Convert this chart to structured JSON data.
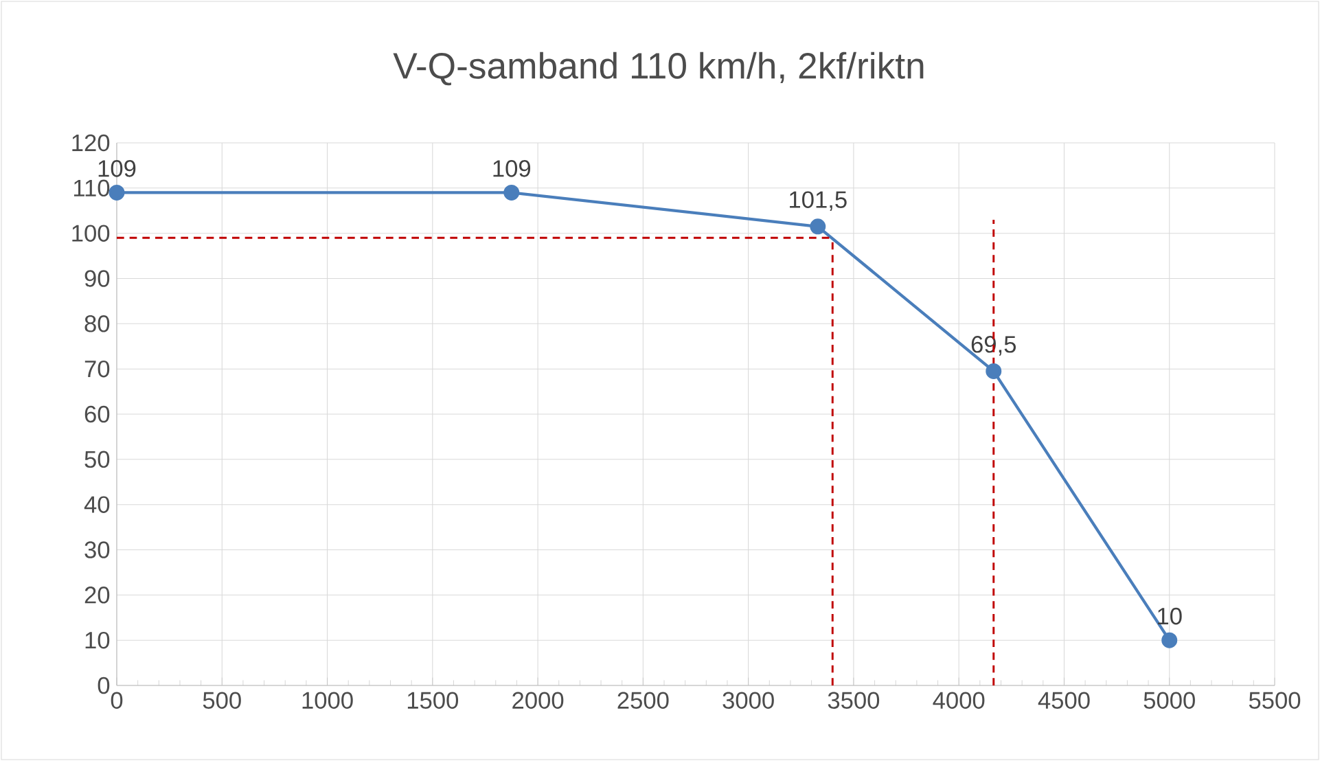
{
  "chart_data": {
    "type": "line",
    "title": "V-Q-samband 110 km/h, 2kf/riktn",
    "series": [
      {
        "color": "#4a7ebb",
        "x": [
          0,
          1875,
          3330,
          4165,
          5000
        ],
        "values": [
          109,
          109,
          101.5,
          69.5,
          10
        ],
        "value_labels": [
          "109",
          "109",
          "101,5",
          "69,5",
          "10"
        ],
        "marker": "circle",
        "line_style": "solid"
      },
      {
        "color": "#c00000",
        "x": [
          0,
          3400
        ],
        "values": [
          99,
          99
        ],
        "marker": "none",
        "line_style": "dashed"
      },
      {
        "color": "#c00000",
        "x": [
          3400,
          3400
        ],
        "values": [
          0,
          99
        ],
        "marker": "none",
        "line_style": "dashed"
      },
      {
        "color": "#c00000",
        "x": [
          4165,
          4165
        ],
        "values": [
          0,
          103
        ],
        "marker": "none",
        "line_style": "dashed"
      }
    ],
    "xlim": [
      0,
      5500
    ],
    "xticks": [
      0,
      500,
      1000,
      1500,
      2000,
      2500,
      3000,
      3500,
      4000,
      4500,
      5000,
      5500
    ],
    "ylim": [
      0,
      120
    ],
    "yticks": [
      0,
      10,
      20,
      30,
      40,
      50,
      60,
      70,
      80,
      90,
      100,
      110,
      120
    ],
    "grid": true
  }
}
